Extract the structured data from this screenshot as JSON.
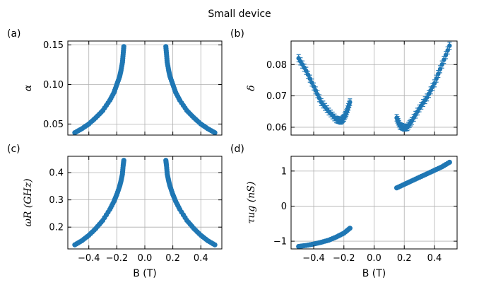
{
  "title": "Small device",
  "colors": {
    "series": "#1f77b4",
    "grid": "#b0b0b0"
  },
  "chart_data": [
    {
      "panel_label": "(a)",
      "type": "scatter",
      "xlabel": "",
      "ylabel": "α",
      "xlim": [
        -0.55,
        0.55
      ],
      "ylim": [
        0.036,
        0.155
      ],
      "xticks": [
        -0.4,
        -0.2,
        0.0,
        0.2,
        0.4
      ],
      "xticklabels": [
        "",
        "",
        "",
        "",
        ""
      ],
      "yticks": [
        0.05,
        0.1,
        0.15
      ],
      "yticklabels": [
        "0.05",
        "0.10",
        "0.15"
      ],
      "grid": true,
      "series": [
        {
          "x": [
            -0.5,
            -0.45,
            -0.4,
            -0.35,
            -0.3,
            -0.25,
            -0.22,
            -0.2,
            -0.18,
            -0.17,
            -0.16,
            -0.155,
            -0.15
          ],
          "y": [
            0.039,
            0.044,
            0.05,
            0.058,
            0.067,
            0.08,
            0.09,
            0.1,
            0.11,
            0.118,
            0.128,
            0.138,
            0.148
          ]
        },
        {
          "x": [
            0.15,
            0.155,
            0.16,
            0.17,
            0.18,
            0.2,
            0.22,
            0.25,
            0.3,
            0.35,
            0.4,
            0.45,
            0.5
          ],
          "y": [
            0.148,
            0.138,
            0.128,
            0.118,
            0.11,
            0.1,
            0.09,
            0.08,
            0.067,
            0.058,
            0.05,
            0.044,
            0.039
          ]
        }
      ]
    },
    {
      "panel_label": "(b)",
      "type": "scatter",
      "xlabel": "",
      "ylabel": "δ",
      "xlim": [
        -0.55,
        0.55
      ],
      "ylim": [
        0.0575,
        0.0875
      ],
      "xticks": [
        -0.4,
        -0.2,
        0.0,
        0.2,
        0.4
      ],
      "xticklabels": [
        "",
        "",
        "",
        "",
        ""
      ],
      "yticks": [
        0.06,
        0.07,
        0.08
      ],
      "yticklabels": [
        "0.06",
        "0.07",
        "0.08"
      ],
      "grid": true,
      "error_bars": true,
      "series": [
        {
          "x": [
            -0.5,
            -0.45,
            -0.4,
            -0.35,
            -0.3,
            -0.25,
            -0.22,
            -0.2,
            -0.18,
            -0.16
          ],
          "y": [
            0.082,
            0.078,
            0.073,
            0.068,
            0.065,
            0.0625,
            0.062,
            0.063,
            0.065,
            0.068
          ]
        },
        {
          "x": [
            0.15,
            0.17,
            0.2,
            0.22,
            0.25,
            0.3,
            0.35,
            0.4,
            0.45,
            0.5
          ],
          "y": [
            0.063,
            0.0605,
            0.0598,
            0.06,
            0.062,
            0.066,
            0.0695,
            0.074,
            0.08,
            0.086
          ]
        }
      ],
      "yerr": 0.001
    },
    {
      "panel_label": "(c)",
      "type": "scatter",
      "xlabel": "B (T)",
      "ylabel": "ωR (GHz)",
      "xlim": [
        -0.55,
        0.55
      ],
      "ylim": [
        0.12,
        0.46
      ],
      "xticks": [
        -0.4,
        -0.2,
        0.0,
        0.2,
        0.4
      ],
      "xticklabels": [
        "−0.4",
        "−0.2",
        "0.0",
        "0.2",
        "0.4"
      ],
      "yticks": [
        0.2,
        0.3,
        0.4
      ],
      "yticklabels": [
        "0.2",
        "0.3",
        "0.4"
      ],
      "grid": true,
      "series": [
        {
          "x": [
            -0.5,
            -0.45,
            -0.4,
            -0.35,
            -0.3,
            -0.25,
            -0.22,
            -0.2,
            -0.18,
            -0.17,
            -0.16,
            -0.155,
            -0.15
          ],
          "y": [
            0.135,
            0.15,
            0.17,
            0.195,
            0.225,
            0.265,
            0.295,
            0.32,
            0.35,
            0.37,
            0.395,
            0.425,
            0.445
          ]
        },
        {
          "x": [
            0.15,
            0.155,
            0.16,
            0.17,
            0.18,
            0.2,
            0.22,
            0.25,
            0.3,
            0.35,
            0.4,
            0.45,
            0.5
          ],
          "y": [
            0.445,
            0.425,
            0.395,
            0.37,
            0.35,
            0.32,
            0.295,
            0.265,
            0.225,
            0.195,
            0.17,
            0.15,
            0.135
          ]
        }
      ]
    },
    {
      "panel_label": "(d)",
      "type": "scatter",
      "xlabel": "B (T)",
      "ylabel": "τug (nS)",
      "xlim": [
        -0.55,
        0.55
      ],
      "ylim": [
        -1.22,
        1.42
      ],
      "xticks": [
        -0.4,
        -0.2,
        0.0,
        0.2,
        0.4
      ],
      "xticklabels": [
        "−0.4",
        "−0.2",
        "0.0",
        "0.2",
        "0.4"
      ],
      "yticks": [
        -1,
        0,
        1
      ],
      "yticklabels": [
        "−1",
        "0",
        "1"
      ],
      "grid": true,
      "series": [
        {
          "x": [
            -0.5,
            -0.45,
            -0.4,
            -0.35,
            -0.3,
            -0.25,
            -0.2,
            -0.16
          ],
          "y": [
            -1.15,
            -1.12,
            -1.08,
            -1.03,
            -0.97,
            -0.88,
            -0.77,
            -0.63
          ]
        },
        {
          "x": [
            0.15,
            0.2,
            0.25,
            0.3,
            0.35,
            0.4,
            0.45,
            0.5
          ],
          "y": [
            0.52,
            0.62,
            0.72,
            0.82,
            0.92,
            1.02,
            1.12,
            1.25
          ]
        }
      ]
    }
  ]
}
